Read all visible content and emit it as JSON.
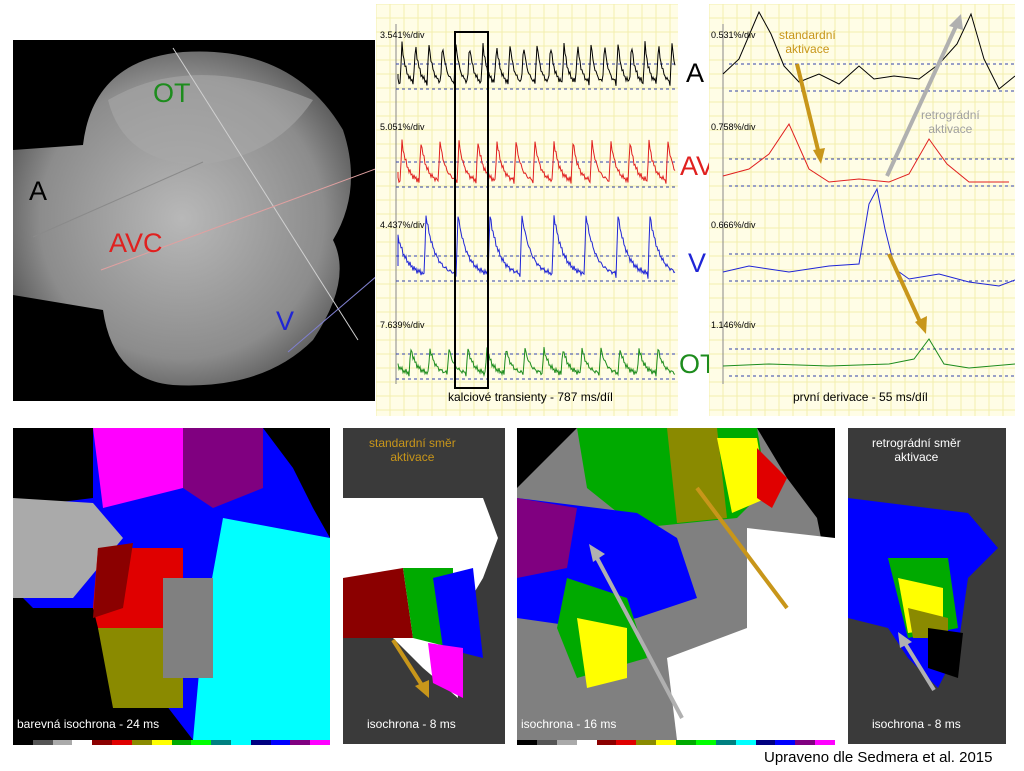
{
  "colors": {
    "atrium": "#000000",
    "avc": "#e0201f",
    "ventricle": "#1f25d6",
    "outflow": "#1d8c1d",
    "arrow_standard": "#c8961a",
    "arrow_retrograde": "#b0b0b0",
    "grid": "#f3eeae"
  },
  "heart_image": {
    "labels": {
      "ot": "OT",
      "a": "A",
      "avc": "AVC",
      "v": "V"
    }
  },
  "transients_panel": {
    "scales": [
      "3.541%/div",
      "5.051%/div",
      "4.437%/div",
      "7.639%/div"
    ],
    "caption": "kalciové transienty - 787 ms/díl"
  },
  "trace_labels": {
    "a": "A",
    "av": "AV",
    "v": "V",
    "ot": "OT"
  },
  "derivative_panel": {
    "scales": [
      "0.531%/div",
      "0.758%/div",
      "0.666%/div",
      "1.146%/div"
    ],
    "caption": "první derivace - 55 ms/díl",
    "standard_note": [
      "standardní",
      "aktivace"
    ],
    "retrograde_note": [
      "retrográdní",
      "aktivace"
    ]
  },
  "maps": [
    {
      "caption": "barevná isochrona - 24 ms"
    },
    {
      "caption": "isochrona - 8 ms",
      "title": [
        "standardní směr",
        "aktivace"
      ]
    },
    {
      "caption": "isochrona - 16 ms"
    },
    {
      "caption": "isochrona - 8 ms",
      "title": [
        "retrográdní směr",
        "aktivace"
      ]
    }
  ],
  "color_scale": [
    "#000000",
    "#555555",
    "#aaaaaa",
    "#ffffff",
    "#8b0000",
    "#e00000",
    "#8a8a00",
    "#ffff00",
    "#00aa00",
    "#00ff00",
    "#008080",
    "#00ffff",
    "#000080",
    "#0000ff",
    "#800080",
    "#ff00ff"
  ],
  "credit": "Upraveno dle Sedmera et al. 2015"
}
